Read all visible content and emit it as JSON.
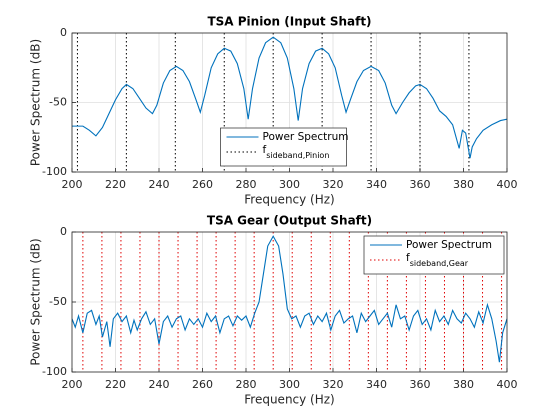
{
  "chart_data": [
    {
      "type": "line",
      "title": "TSA Pinion (Input Shaft)",
      "xlabel": "Frequency (Hz)",
      "ylabel": "Power Spectrum (dB)",
      "xlim": [
        200,
        400
      ],
      "ylim": [
        -100,
        0
      ],
      "xticks": [
        200,
        220,
        240,
        260,
        280,
        300,
        320,
        340,
        360,
        380,
        400
      ],
      "yticks": [
        -100,
        -50,
        0
      ],
      "grid": true,
      "legend": "south",
      "series": [
        {
          "name": "Power Spectrum",
          "color": "#0072bd",
          "x": [
            200,
            205,
            208,
            211,
            214,
            217,
            220,
            223,
            225,
            228,
            231,
            234,
            237,
            239,
            242,
            245,
            248,
            251,
            254,
            257,
            259,
            261,
            264,
            267,
            270,
            273,
            276,
            279,
            281,
            283,
            286,
            289,
            292.5,
            296,
            299,
            302,
            304,
            306,
            309,
            312,
            315,
            318,
            321,
            324,
            326,
            328,
            331,
            334,
            337.5,
            341,
            344,
            347,
            349,
            352,
            355,
            358,
            360,
            363,
            366,
            369,
            372,
            375,
            378,
            379.5,
            381,
            383,
            384,
            386,
            389,
            393,
            397,
            400
          ],
          "values": [
            -67,
            -67,
            -70,
            -74,
            -68,
            -58,
            -48,
            -40,
            -37,
            -40,
            -47,
            -54,
            -58,
            -52,
            -36,
            -27,
            -24,
            -27,
            -35,
            -48,
            -57,
            -45,
            -25,
            -15,
            -11,
            -13,
            -22,
            -40,
            -62,
            -40,
            -18,
            -7,
            -3,
            -7,
            -18,
            -40,
            -63,
            -40,
            -22,
            -13,
            -11,
            -15,
            -25,
            -45,
            -57,
            -48,
            -35,
            -27,
            -24,
            -27,
            -36,
            -52,
            -58,
            -50,
            -43,
            -38,
            -37,
            -40,
            -47,
            -56,
            -60,
            -66,
            -83,
            -70,
            -72,
            -90,
            -82,
            -76,
            -70,
            -66,
            -63,
            -62
          ]
        }
      ],
      "sidebands": {
        "name": "f",
        "name_subscript": "sideband,Pinion",
        "color": "#000000",
        "x": [
          202.5,
          225,
          247.5,
          270,
          292.5,
          315,
          337.5,
          360,
          382.5
        ]
      }
    },
    {
      "type": "line",
      "title": "TSA Gear (Output Shaft)",
      "xlabel": "Frequency (Hz)",
      "ylabel": "Power Spectrum (dB)",
      "xlim": [
        200,
        400
      ],
      "ylim": [
        -100,
        0
      ],
      "xticks": [
        200,
        220,
        240,
        260,
        280,
        300,
        320,
        340,
        360,
        380,
        400
      ],
      "yticks": [
        -100,
        -50,
        0
      ],
      "grid": true,
      "legend": "northeast",
      "series": [
        {
          "name": "Power Spectrum",
          "color": "#0072bd",
          "x": [
            200,
            201.5,
            203,
            205,
            207,
            209,
            211,
            212.5,
            214,
            216,
            217.5,
            219,
            221,
            223,
            225,
            227,
            228.5,
            230,
            232,
            234,
            236,
            238,
            240,
            242,
            244,
            246,
            248,
            250,
            252,
            254,
            256,
            258,
            260,
            262,
            264,
            266,
            268,
            270,
            272,
            274,
            276,
            278,
            280,
            282,
            284,
            286,
            288,
            290,
            292.5,
            295,
            297,
            299,
            301,
            303,
            305,
            307,
            309,
            311,
            313,
            315,
            317,
            319,
            321,
            323,
            325,
            327,
            329,
            331,
            333,
            335,
            337,
            339,
            341,
            343,
            345,
            347,
            349,
            351,
            353,
            355,
            357,
            359,
            361,
            363,
            365,
            367,
            369,
            371,
            373,
            375,
            377,
            379,
            381,
            383,
            385,
            387,
            389,
            391,
            393,
            395,
            396.5,
            398,
            400
          ],
          "values": [
            -62,
            -68,
            -60,
            -72,
            -58,
            -56,
            -66,
            -60,
            -75,
            -64,
            -82,
            -62,
            -58,
            -64,
            -60,
            -72,
            -63,
            -70,
            -62,
            -57,
            -66,
            -62,
            -80,
            -64,
            -60,
            -68,
            -62,
            -60,
            -70,
            -62,
            -66,
            -62,
            -68,
            -58,
            -64,
            -60,
            -72,
            -62,
            -60,
            -67,
            -60,
            -63,
            -60,
            -68,
            -58,
            -50,
            -30,
            -10,
            -3,
            -10,
            -30,
            -55,
            -62,
            -60,
            -68,
            -60,
            -58,
            -66,
            -60,
            -64,
            -58,
            -70,
            -60,
            -56,
            -65,
            -62,
            -60,
            -72,
            -58,
            -64,
            -60,
            -56,
            -66,
            -62,
            -58,
            -68,
            -52,
            -62,
            -60,
            -70,
            -60,
            -56,
            -66,
            -62,
            -70,
            -56,
            -64,
            -60,
            -66,
            -56,
            -62,
            -65,
            -58,
            -62,
            -68,
            -57,
            -65,
            -52,
            -62,
            -78,
            -93,
            -72,
            -62
          ]
        }
      ],
      "sidebands": {
        "name": "f",
        "name_subscript": "sideband,Gear",
        "color": "#e00000",
        "x": [
          205,
          213.75,
          222.5,
          231.25,
          240,
          248.75,
          257.5,
          266.25,
          275,
          283.75,
          292.5,
          301.25,
          310,
          318.75,
          327.5,
          336.25,
          345,
          353.75,
          362.5,
          371.25,
          380,
          388.75,
          397.5
        ]
      }
    }
  ]
}
